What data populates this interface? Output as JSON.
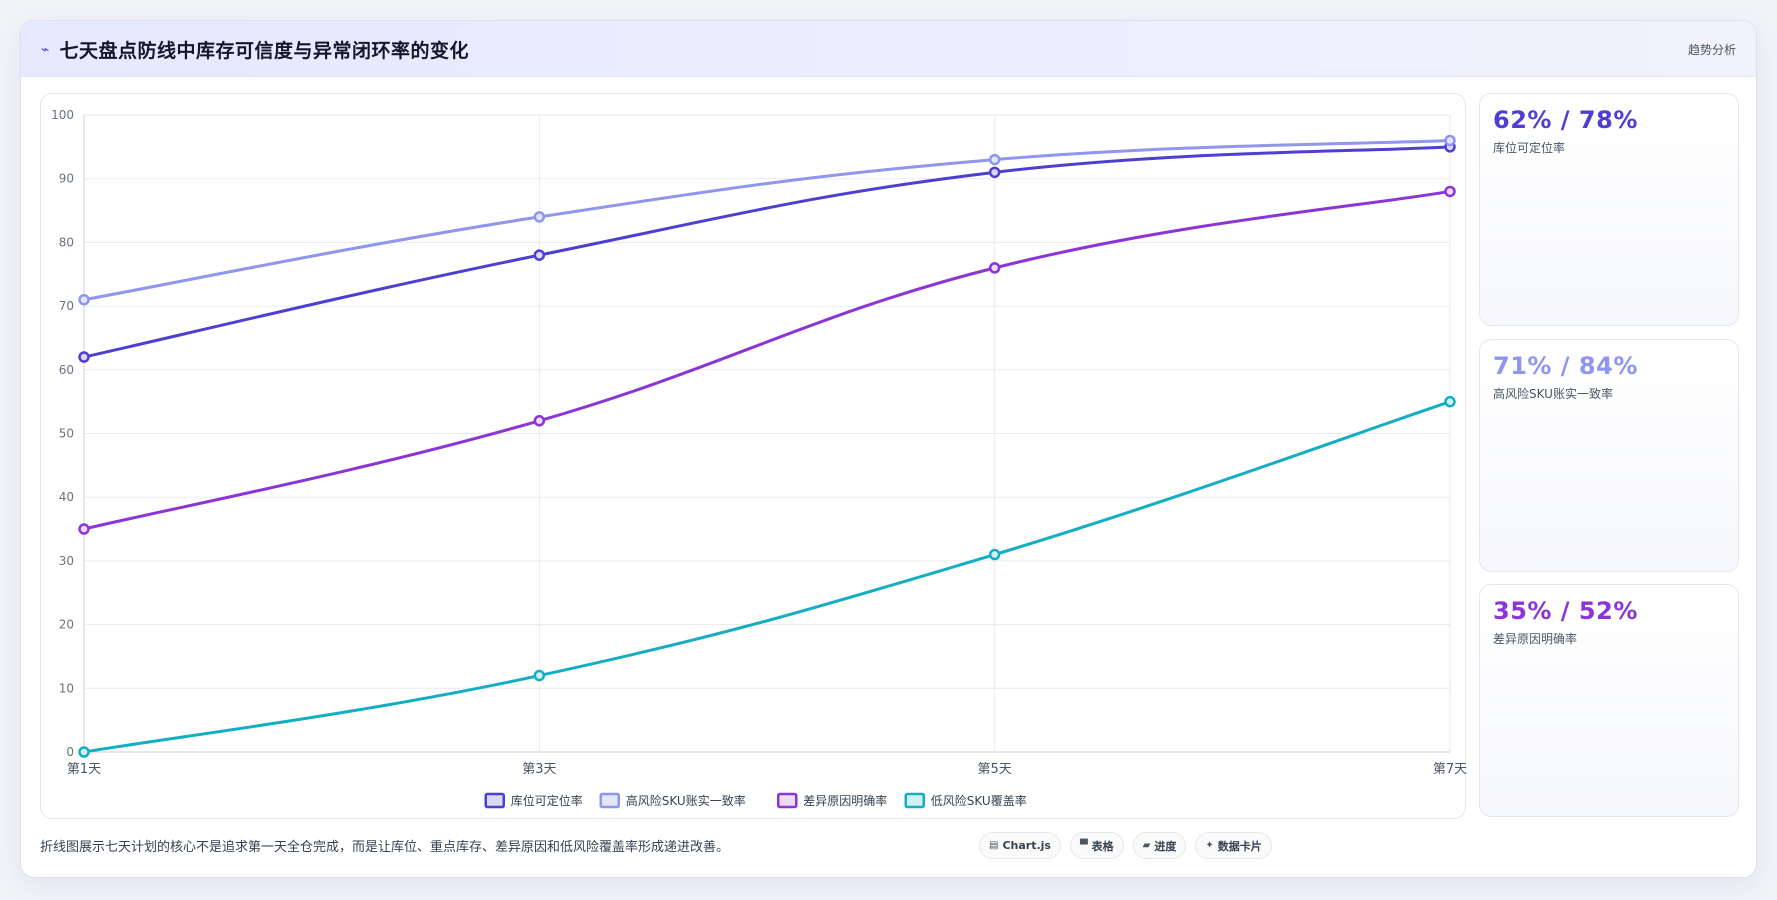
{
  "header": {
    "title": "七天盘点防线中库存可信度与异常闭环率的变化",
    "tag": "趋势分析"
  },
  "side_cards": [
    {
      "value": "62% / 78%",
      "label": "库位可定位率",
      "color": "#4f3fd0"
    },
    {
      "value": "71% / 84%",
      "label": "高风险SKU账实一致率",
      "color": "#8e96ee"
    },
    {
      "value": "35% / 52%",
      "label": "差异原因明确率",
      "color": "#8b35d6"
    }
  ],
  "footer": {
    "text": "折线图展示七天计划的核心不是追求第一天全仓完成，而是让库位、重点库存、差异原因和低风险覆盖率形成递进改善。",
    "chips": [
      {
        "icon": "chart-icon",
        "glyph": "▤",
        "label": "Chart.js"
      },
      {
        "icon": "table-icon",
        "glyph": "▀",
        "label": "表格"
      },
      {
        "icon": "progress-icon",
        "glyph": "▰",
        "label": "进度"
      },
      {
        "icon": "card-icon",
        "glyph": "✦",
        "label": "数据卡片"
      }
    ]
  },
  "chart_data": {
    "type": "line",
    "categories": [
      "第1天",
      "第3天",
      "第5天",
      "第7天"
    ],
    "ylim": [
      0,
      100
    ],
    "yticks": [
      0,
      10,
      20,
      30,
      40,
      50,
      60,
      70,
      80,
      90,
      100
    ],
    "grid": true,
    "legend": "bottom",
    "series": [
      {
        "name": "库位可定位率",
        "color": "#4f3fd0",
        "fill": "#dcd9f6",
        "values": [
          62,
          78,
          91,
          95
        ]
      },
      {
        "name": "高风险SKU账实一致率",
        "color": "#8e96ee",
        "fill": "#e4e6fb",
        "values": [
          71,
          84,
          93,
          96
        ]
      },
      {
        "name": "差异原因明确率",
        "color": "#8b35d6",
        "fill": "#ecdcf8",
        "values": [
          35,
          52,
          76,
          88
        ]
      },
      {
        "name": "低风险SKU覆盖率",
        "color": "#14aec2",
        "fill": "#d2f1f5",
        "values": [
          0,
          12,
          31,
          55
        ]
      }
    ]
  }
}
